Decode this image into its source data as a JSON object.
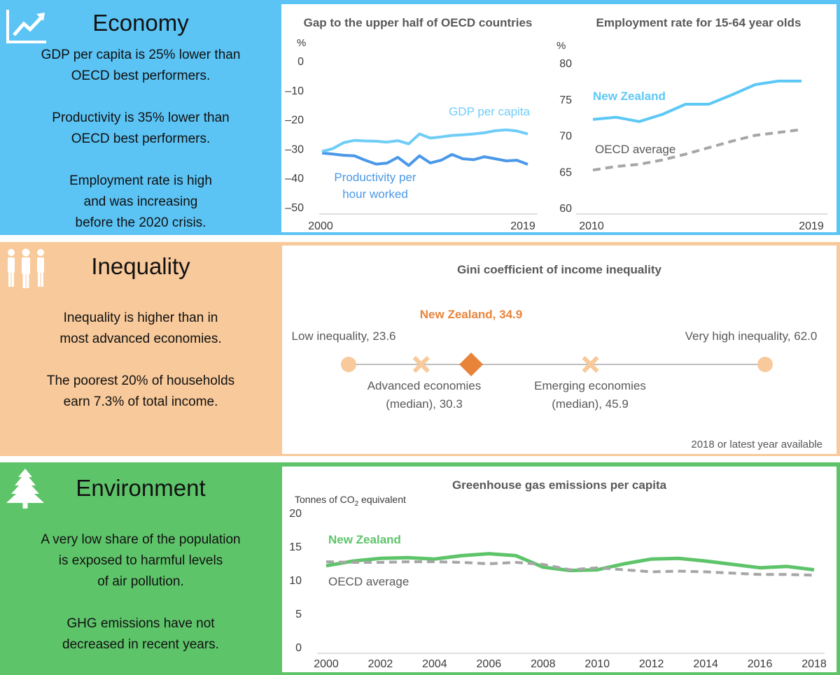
{
  "economy": {
    "title": "Economy",
    "icon": "trend-up-icon",
    "paragraphs": [
      [
        "GDP per capita is 25% lower than",
        "OECD best performers."
      ],
      [
        "Productivity is 35% lower than",
        "OECD best performers."
      ],
      [
        "Employment rate is high",
        "and was increasing",
        "before the 2020 crisis."
      ]
    ]
  },
  "inequality": {
    "title": "Inequality",
    "icon": "people-icon",
    "paragraphs": [
      [
        "Inequality is higher than in",
        "most advanced economies."
      ],
      [
        "The poorest 20% of households",
        "earn 7.3% of total income."
      ]
    ]
  },
  "environment": {
    "title": "Environment",
    "icon": "tree-icon",
    "paragraphs": [
      [
        "A very low share of the population",
        "is exposed to harmful levels",
        "of air pollution."
      ],
      [
        "GHG emissions have not",
        "decreased in recent years."
      ]
    ]
  },
  "colors": {
    "economy_bg": "#5bc4f5",
    "inequality_bg": "#f8c99a",
    "environment_bg": "#5ec46a",
    "gdp_line": "#6fcdf7",
    "productivity_line": "#4a98e8",
    "nz_employment": "#5cc8f5",
    "oecd_dashed": "#a6a6a6",
    "nz_marker": "#e8843a",
    "low_high_marker": "#f8c99a",
    "nz_ghg": "#5ec46a"
  },
  "chart_data": [
    {
      "type": "line",
      "title": "Gap to the upper half of OECD countries",
      "ylabel": "%",
      "ylim": [
        -50,
        0
      ],
      "yticks": [
        0,
        -10,
        -20,
        -30,
        -40,
        -50
      ],
      "xtick_labels": [
        "2000",
        "2019"
      ],
      "x": [
        2000,
        2001,
        2002,
        2003,
        2004,
        2005,
        2006,
        2007,
        2008,
        2009,
        2010,
        2011,
        2012,
        2013,
        2014,
        2015,
        2016,
        2017,
        2018,
        2019
      ],
      "series": [
        {
          "name": "GDP per capita",
          "values": [
            -31,
            -30,
            -28,
            -27.2,
            -27.4,
            -27.5,
            -27.8,
            -27.3,
            -28.4,
            -25,
            -26.4,
            -26,
            -25.5,
            -25.3,
            -25,
            -24.6,
            -23.9,
            -23.6,
            -24,
            -25
          ]
        },
        {
          "name": "Productivity per hour worked",
          "values": [
            -31.5,
            -31.9,
            -32.3,
            -32.5,
            -34,
            -35.3,
            -35,
            -33,
            -35.8,
            -32.5,
            -34.9,
            -34,
            -32,
            -33.5,
            -33.8,
            -32.8,
            -33.5,
            -34.2,
            -34,
            -35.4
          ]
        }
      ]
    },
    {
      "type": "line",
      "title": "Employment rate for 15-64 year olds",
      "ylabel": "%",
      "ylim": [
        60,
        80
      ],
      "yticks": [
        80,
        75,
        70,
        65,
        60
      ],
      "xtick_labels": [
        "2010",
        "2019"
      ],
      "x": [
        2010,
        2011,
        2012,
        2013,
        2014,
        2015,
        2016,
        2017,
        2018,
        2019
      ],
      "series": [
        {
          "name": "New Zealand",
          "values": [
            72.2,
            72.5,
            71.9,
            72.9,
            74.3,
            74.3,
            75.6,
            77,
            77.5,
            77.5
          ]
        },
        {
          "name": "OECD average",
          "values": [
            65.2,
            65.7,
            66,
            66.6,
            67.4,
            68.3,
            69.2,
            70,
            70.4,
            70.8
          ]
        }
      ]
    },
    {
      "type": "scatter",
      "title": "Gini coefficient of income inequality",
      "note": "2018 or latest year available",
      "points": [
        {
          "label": "Low inequality, 23.6",
          "line1": "Low inequality, 23.6",
          "value": 23.6,
          "marker": "circle"
        },
        {
          "label": "Advanced economies (median), 30.3",
          "line1": "Advanced economies",
          "line2": "(median), 30.3",
          "value": 30.3,
          "marker": "cross"
        },
        {
          "label": "New Zealand, 34.9",
          "line1": "New Zealand,  34.9",
          "value": 34.9,
          "marker": "diamond"
        },
        {
          "label": "Emerging economies (median), 45.9",
          "line1": "Emerging economies",
          "line2": "(median), 45.9",
          "value": 45.9,
          "marker": "cross"
        },
        {
          "label": "Very high inequality, 62.0",
          "line1": "Very high inequality, 62.0",
          "value": 62.0,
          "marker": "circle"
        }
      ]
    },
    {
      "type": "line",
      "title": "Greenhouse gas emissions per capita",
      "ylabel_main": "Tonnes of CO",
      "ylabel_sub": "2",
      "ylabel_tail": " equivalent",
      "ylim": [
        0,
        20
      ],
      "yticks": [
        20,
        15,
        10,
        5,
        0
      ],
      "xtick_labels": [
        "2000",
        "2002",
        "2004",
        "2006",
        "2008",
        "2010",
        "2012",
        "2014",
        "2016",
        "2018"
      ],
      "x": [
        2000,
        2001,
        2002,
        2003,
        2004,
        2005,
        2006,
        2007,
        2008,
        2009,
        2010,
        2011,
        2012,
        2013,
        2014,
        2015,
        2016,
        2017,
        2018
      ],
      "series": [
        {
          "name": "New Zealand",
          "values": [
            12.1,
            12.8,
            13.2,
            13.3,
            13.1,
            13.6,
            13.9,
            13.6,
            11.9,
            11.4,
            11.5,
            12.4,
            13.1,
            13.2,
            12.8,
            12.3,
            11.8,
            12.0,
            11.5
          ]
        },
        {
          "name": "OECD average",
          "values": [
            12.7,
            12.6,
            12.6,
            12.7,
            12.7,
            12.6,
            12.4,
            12.6,
            12.3,
            11.5,
            11.8,
            11.5,
            11.2,
            11.3,
            11.2,
            11.0,
            10.8,
            10.8,
            10.7
          ]
        }
      ]
    }
  ]
}
